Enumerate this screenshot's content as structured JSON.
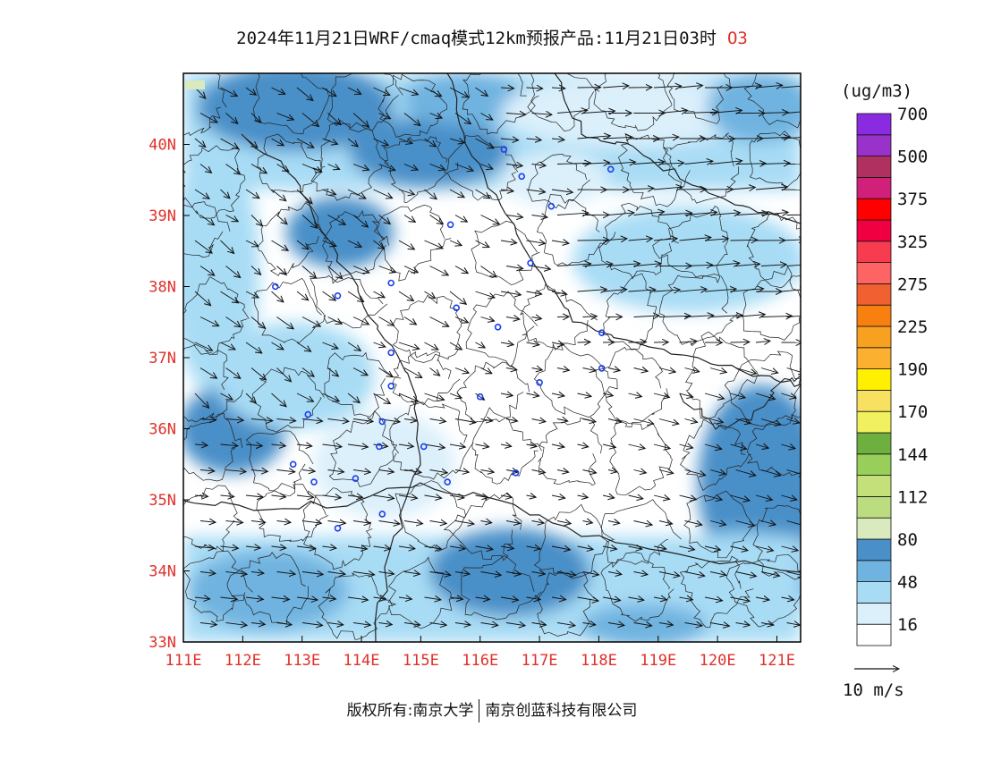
{
  "title": {
    "main": "2024年11月21日WRF/cmaq模式12km预报产品:11月21日03时",
    "species": "O3"
  },
  "colorbar": {
    "unit": "(ug/m3)",
    "colors": [
      "#ffffff",
      "#dcf0fb",
      "#a8dcf5",
      "#6fb3e0",
      "#4a8fc8",
      "#d9ebbe",
      "#bcdc80",
      "#c3e07a",
      "#97cf5a",
      "#6eb040",
      "#f0f060",
      "#f8e060",
      "#fff000",
      "#fbb030",
      "#f8a020",
      "#f88010",
      "#f06030",
      "#ff6464",
      "#f83c50",
      "#f00040",
      "#ff0000",
      "#d0207a",
      "#b03060",
      "#9832c8",
      "#8a2be2"
    ],
    "labels": [
      "16",
      "48",
      "80",
      "112",
      "144",
      "170",
      "190",
      "225",
      "275",
      "325",
      "375",
      "500",
      "700"
    ]
  },
  "map": {
    "lon_ticks": [
      "111E",
      "112E",
      "113E",
      "114E",
      "115E",
      "116E",
      "117E",
      "118E",
      "119E",
      "120E",
      "121E"
    ],
    "lat_ticks": [
      "33N",
      "34N",
      "35N",
      "36N",
      "37N",
      "38N",
      "39N",
      "40N"
    ],
    "lon_range": [
      111,
      121.4
    ],
    "lat_range": [
      33,
      41
    ],
    "stations": [
      [
        116.4,
        39.93
      ],
      [
        116.7,
        39.55
      ],
      [
        118.2,
        39.65
      ],
      [
        117.2,
        39.13
      ],
      [
        115.5,
        38.87
      ],
      [
        116.85,
        38.33
      ],
      [
        114.5,
        38.05
      ],
      [
        113.6,
        37.87
      ],
      [
        112.55,
        38.0
      ],
      [
        115.6,
        37.7
      ],
      [
        116.3,
        37.43
      ],
      [
        118.05,
        37.35
      ],
      [
        118.05,
        36.85
      ],
      [
        114.5,
        37.07
      ],
      [
        114.5,
        36.6
      ],
      [
        117.0,
        36.65
      ],
      [
        116.0,
        36.45
      ],
      [
        113.1,
        36.2
      ],
      [
        114.35,
        36.1
      ],
      [
        114.3,
        35.75
      ],
      [
        115.05,
        35.75
      ],
      [
        116.6,
        35.38
      ],
      [
        112.85,
        35.5
      ],
      [
        113.9,
        35.3
      ],
      [
        113.2,
        35.25
      ],
      [
        115.45,
        35.25
      ],
      [
        114.35,
        34.8
      ],
      [
        113.6,
        34.6
      ]
    ]
  },
  "wind_legend": {
    "label": "10 m/s"
  },
  "footer": {
    "left": "版权所有:南京大学",
    "right": "南京创蓝科技有限公司"
  }
}
